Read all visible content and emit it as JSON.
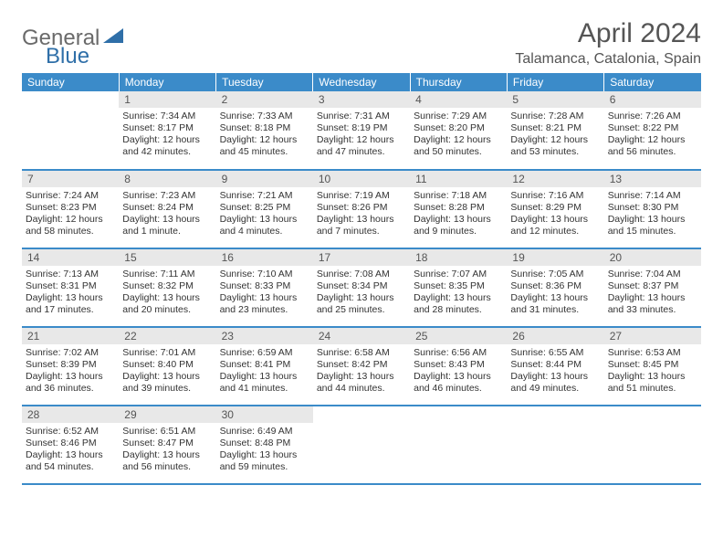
{
  "logo": {
    "text1": "General",
    "text2": "Blue"
  },
  "title": "April 2024",
  "location": "Talamanca, Catalonia, Spain",
  "colors": {
    "header_bg": "#3b8bc9",
    "header_text": "#ffffff",
    "daynum_bg": "#e8e8e8",
    "text": "#333333",
    "logo_gray": "#6a6a6a",
    "logo_blue": "#2f6fa8",
    "border": "#3b8bc9"
  },
  "dayHeaders": [
    "Sunday",
    "Monday",
    "Tuesday",
    "Wednesday",
    "Thursday",
    "Friday",
    "Saturday"
  ],
  "weeks": [
    [
      null,
      {
        "n": 1,
        "sr": "7:34 AM",
        "ss": "8:17 PM",
        "dl": "12 hours and 42 minutes."
      },
      {
        "n": 2,
        "sr": "7:33 AM",
        "ss": "8:18 PM",
        "dl": "12 hours and 45 minutes."
      },
      {
        "n": 3,
        "sr": "7:31 AM",
        "ss": "8:19 PM",
        "dl": "12 hours and 47 minutes."
      },
      {
        "n": 4,
        "sr": "7:29 AM",
        "ss": "8:20 PM",
        "dl": "12 hours and 50 minutes."
      },
      {
        "n": 5,
        "sr": "7:28 AM",
        "ss": "8:21 PM",
        "dl": "12 hours and 53 minutes."
      },
      {
        "n": 6,
        "sr": "7:26 AM",
        "ss": "8:22 PM",
        "dl": "12 hours and 56 minutes."
      }
    ],
    [
      {
        "n": 7,
        "sr": "7:24 AM",
        "ss": "8:23 PM",
        "dl": "12 hours and 58 minutes."
      },
      {
        "n": 8,
        "sr": "7:23 AM",
        "ss": "8:24 PM",
        "dl": "13 hours and 1 minute."
      },
      {
        "n": 9,
        "sr": "7:21 AM",
        "ss": "8:25 PM",
        "dl": "13 hours and 4 minutes."
      },
      {
        "n": 10,
        "sr": "7:19 AM",
        "ss": "8:26 PM",
        "dl": "13 hours and 7 minutes."
      },
      {
        "n": 11,
        "sr": "7:18 AM",
        "ss": "8:28 PM",
        "dl": "13 hours and 9 minutes."
      },
      {
        "n": 12,
        "sr": "7:16 AM",
        "ss": "8:29 PM",
        "dl": "13 hours and 12 minutes."
      },
      {
        "n": 13,
        "sr": "7:14 AM",
        "ss": "8:30 PM",
        "dl": "13 hours and 15 minutes."
      }
    ],
    [
      {
        "n": 14,
        "sr": "7:13 AM",
        "ss": "8:31 PM",
        "dl": "13 hours and 17 minutes."
      },
      {
        "n": 15,
        "sr": "7:11 AM",
        "ss": "8:32 PM",
        "dl": "13 hours and 20 minutes."
      },
      {
        "n": 16,
        "sr": "7:10 AM",
        "ss": "8:33 PM",
        "dl": "13 hours and 23 minutes."
      },
      {
        "n": 17,
        "sr": "7:08 AM",
        "ss": "8:34 PM",
        "dl": "13 hours and 25 minutes."
      },
      {
        "n": 18,
        "sr": "7:07 AM",
        "ss": "8:35 PM",
        "dl": "13 hours and 28 minutes."
      },
      {
        "n": 19,
        "sr": "7:05 AM",
        "ss": "8:36 PM",
        "dl": "13 hours and 31 minutes."
      },
      {
        "n": 20,
        "sr": "7:04 AM",
        "ss": "8:37 PM",
        "dl": "13 hours and 33 minutes."
      }
    ],
    [
      {
        "n": 21,
        "sr": "7:02 AM",
        "ss": "8:39 PM",
        "dl": "13 hours and 36 minutes."
      },
      {
        "n": 22,
        "sr": "7:01 AM",
        "ss": "8:40 PM",
        "dl": "13 hours and 39 minutes."
      },
      {
        "n": 23,
        "sr": "6:59 AM",
        "ss": "8:41 PM",
        "dl": "13 hours and 41 minutes."
      },
      {
        "n": 24,
        "sr": "6:58 AM",
        "ss": "8:42 PM",
        "dl": "13 hours and 44 minutes."
      },
      {
        "n": 25,
        "sr": "6:56 AM",
        "ss": "8:43 PM",
        "dl": "13 hours and 46 minutes."
      },
      {
        "n": 26,
        "sr": "6:55 AM",
        "ss": "8:44 PM",
        "dl": "13 hours and 49 minutes."
      },
      {
        "n": 27,
        "sr": "6:53 AM",
        "ss": "8:45 PM",
        "dl": "13 hours and 51 minutes."
      }
    ],
    [
      {
        "n": 28,
        "sr": "6:52 AM",
        "ss": "8:46 PM",
        "dl": "13 hours and 54 minutes."
      },
      {
        "n": 29,
        "sr": "6:51 AM",
        "ss": "8:47 PM",
        "dl": "13 hours and 56 minutes."
      },
      {
        "n": 30,
        "sr": "6:49 AM",
        "ss": "8:48 PM",
        "dl": "13 hours and 59 minutes."
      },
      null,
      null,
      null,
      null
    ]
  ],
  "labels": {
    "sunrise": "Sunrise:",
    "sunset": "Sunset:",
    "daylight": "Daylight:"
  }
}
